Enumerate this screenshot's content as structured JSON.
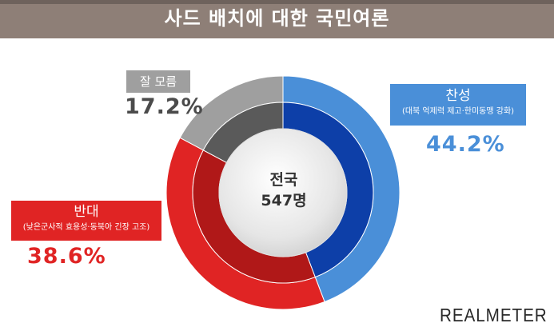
{
  "header": {
    "title": "사드 배치에 대한 국민여론"
  },
  "center": {
    "line1": "전국",
    "line2": "547명"
  },
  "labels": {
    "yes": {
      "main": "찬성",
      "sub": "(대북 억제력 제고·한미동맹 강화)",
      "pct": "44.2%"
    },
    "no": {
      "main": "반대",
      "sub": "(낮은군사적 효용성·동북아 긴장 고조)",
      "pct": "38.6%"
    },
    "unsure": {
      "main": "잘 모름",
      "pct": "17.2%"
    }
  },
  "logo": {
    "text": "REALMETER"
  },
  "chart_data": {
    "type": "pie",
    "title": "사드 배치에 대한 국민여론",
    "center_text": [
      "전국",
      "547명"
    ],
    "categories": [
      "찬성",
      "반대",
      "잘 모름"
    ],
    "values": [
      44.2,
      38.6,
      17.2
    ],
    "colors": {
      "outer": [
        "#4a8fd8",
        "#e02424",
        "#9f9f9f"
      ],
      "inner": [
        "#0d3fa8",
        "#b01818",
        "#5a5a5a"
      ]
    }
  }
}
